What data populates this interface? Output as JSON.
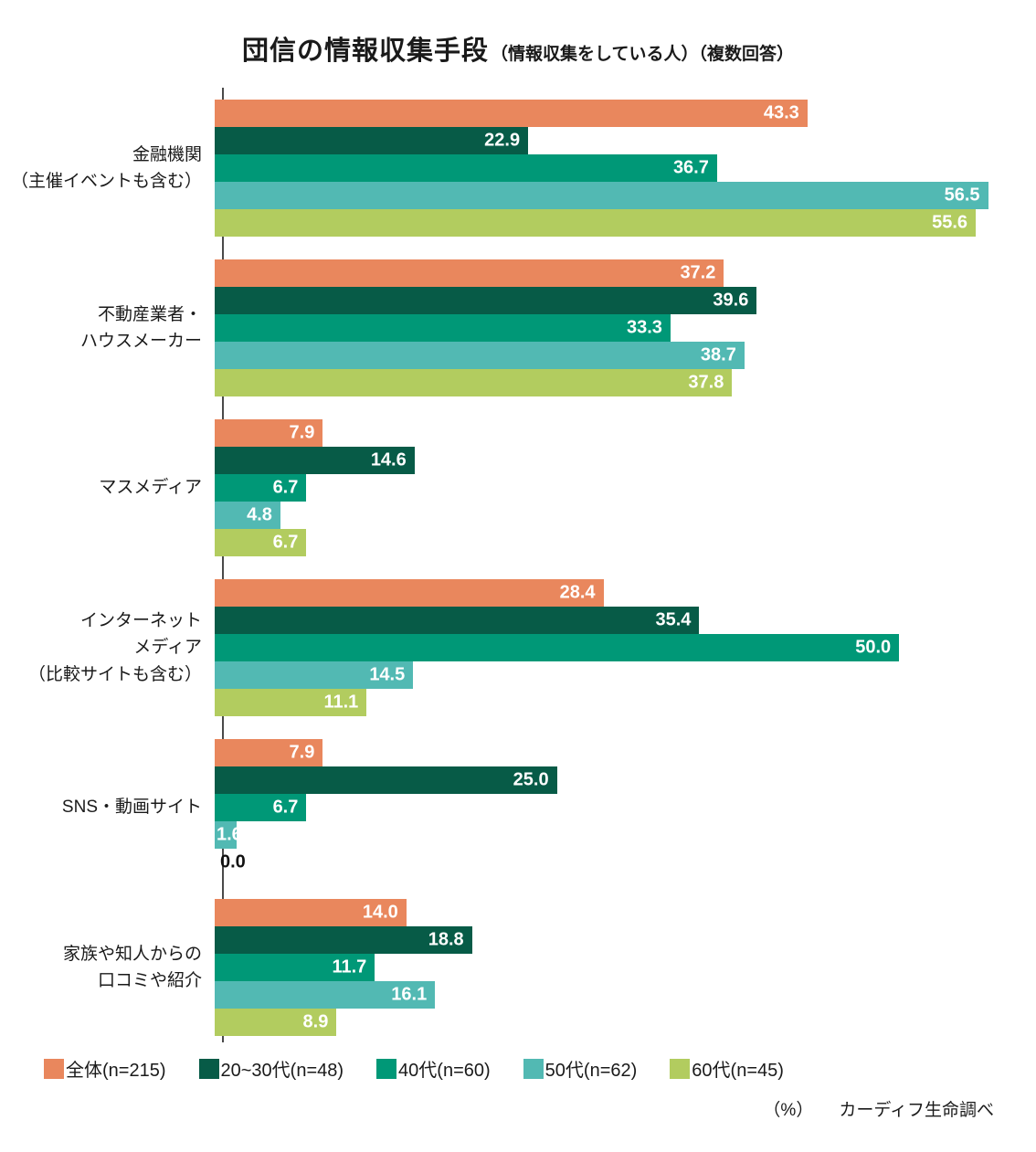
{
  "title": {
    "main": "団信の情報収集手段",
    "sub": "（情報収集をしている人）（複数回答）"
  },
  "footer": {
    "unit": "（%）",
    "source": "カーディフ生命調べ"
  },
  "chart_data": {
    "type": "bar",
    "orientation": "horizontal",
    "title": "団信の情報収集手段（情報収集をしている人）（複数回答）",
    "xlabel": "%",
    "xlim": [
      0,
      60
    ],
    "grid": false,
    "legend_position": "bottom",
    "value_labels": "on-bar",
    "categories": [
      {
        "label": "金融機関（主催イベントも含む）",
        "lines": [
          "金融機関",
          "（主催イベントも含む）"
        ]
      },
      {
        "label": "不動産業者・ハウスメーカー",
        "lines": [
          "不動産業者・",
          "ハウスメーカー"
        ]
      },
      {
        "label": "マスメディア",
        "lines": [
          "マスメディア"
        ]
      },
      {
        "label": "インターネットメディア（比較サイトも含む）",
        "lines": [
          "インターネット",
          "メディア",
          "（比較サイトも含む）"
        ]
      },
      {
        "label": "SNS・動画サイト",
        "lines": [
          "SNS・動画サイト"
        ]
      },
      {
        "label": "家族や知人からの口コミや紹介",
        "lines": [
          "家族や知人からの",
          "口コミや紹介"
        ]
      }
    ],
    "series": [
      {
        "name": "全体(n=215)",
        "color": "#E9875D",
        "values": [
          43.3,
          37.2,
          7.9,
          28.4,
          7.9,
          14.0
        ]
      },
      {
        "name": "20~30代(n=48)",
        "color": "#075B47",
        "values": [
          22.9,
          39.6,
          14.6,
          35.4,
          25.0,
          18.8
        ]
      },
      {
        "name": "40代(n=60)",
        "color": "#009877",
        "values": [
          36.7,
          33.3,
          6.7,
          50.0,
          6.7,
          11.7
        ]
      },
      {
        "name": "50代(n=62)",
        "color": "#52B9B3",
        "values": [
          56.5,
          38.7,
          4.8,
          14.5,
          1.6,
          16.1
        ]
      },
      {
        "name": "60代(n=45)",
        "color": "#B2CC5F",
        "values": [
          55.6,
          37.8,
          6.7,
          11.1,
          0.0,
          8.9
        ]
      }
    ]
  }
}
